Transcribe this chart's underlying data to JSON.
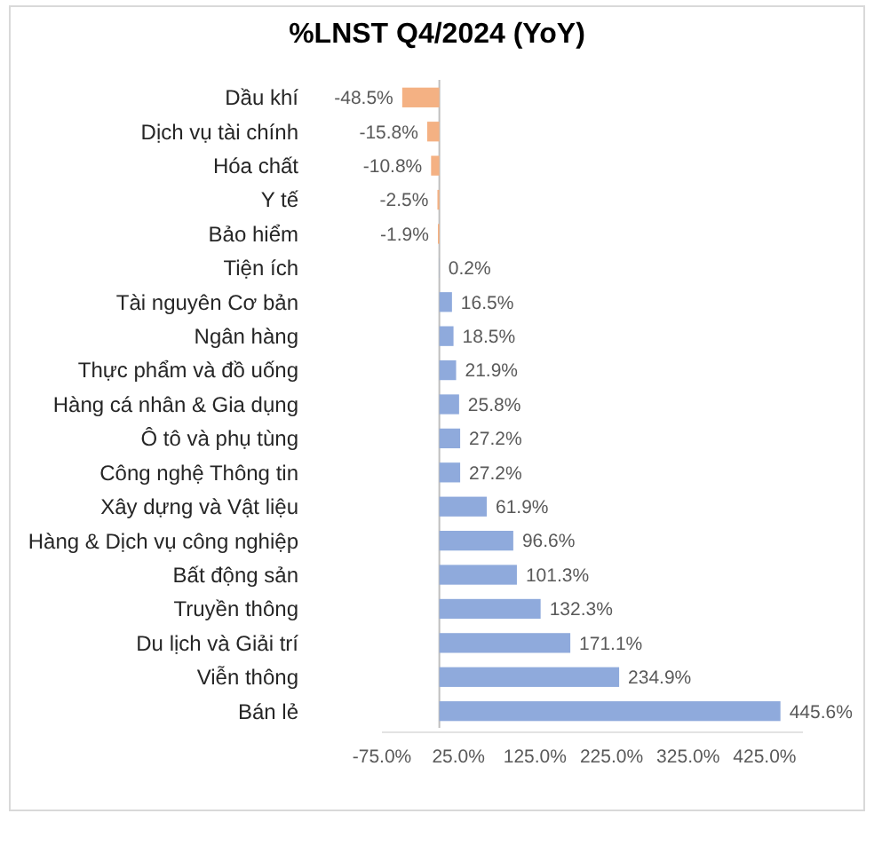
{
  "chart_data": {
    "type": "bar",
    "orientation": "horizontal",
    "title": "%LNST Q4/2024 (YoY)",
    "categories": [
      "Dầu khí",
      "Dịch vụ tài chính",
      "Hóa chất",
      "Y tế",
      "Bảo hiểm",
      "Tiện ích",
      "Tài nguyên Cơ bản",
      "Ngân hàng",
      "Thực phẩm và đồ uống",
      "Hàng cá nhân & Gia dụng",
      "Ô tô và phụ tùng",
      "Công nghệ Thông tin",
      "Xây dựng và Vật liệu",
      "Hàng & Dịch vụ công nghiệp",
      "Bất động sản",
      "Truyền thông",
      "Du lịch và Giải trí",
      "Viễn thông",
      "Bán lẻ"
    ],
    "values": [
      -48.5,
      -15.8,
      -10.8,
      -2.5,
      -1.9,
      0.2,
      16.5,
      18.5,
      21.9,
      25.8,
      27.2,
      27.2,
      61.9,
      96.6,
      101.3,
      132.3,
      171.1,
      234.9,
      445.6
    ],
    "colors": [
      "#f4b183",
      "#f4b183",
      "#f4b183",
      "#f4b183",
      "#f4b183",
      "#8faadc",
      "#8faadc",
      "#8faadc",
      "#8faadc",
      "#8faadc",
      "#8faadc",
      "#8faadc",
      "#8faadc",
      "#8faadc",
      "#8faadc",
      "#8faadc",
      "#8faadc",
      "#8faadc",
      "#8faadc"
    ],
    "value_labels": [
      "-48.5%",
      "-15.8%",
      "-10.8%",
      "-2.5%",
      "-1.9%",
      "0.2%",
      "16.5%",
      "18.5%",
      "21.9%",
      "25.8%",
      "27.2%",
      "27.2%",
      "61.9%",
      "96.6%",
      "101.3%",
      "132.3%",
      "171.1%",
      "234.9%",
      "445.6%"
    ],
    "xlim": [
      -75,
      475
    ],
    "xticks": [
      {
        "value": -75,
        "label": "-75.0%"
      },
      {
        "value": 25,
        "label": "25.0%"
      },
      {
        "value": 125,
        "label": "125.0%"
      },
      {
        "value": 225,
        "label": "225.0%"
      },
      {
        "value": 325,
        "label": "325.0%"
      },
      {
        "value": 425,
        "label": "425.0%"
      }
    ]
  }
}
